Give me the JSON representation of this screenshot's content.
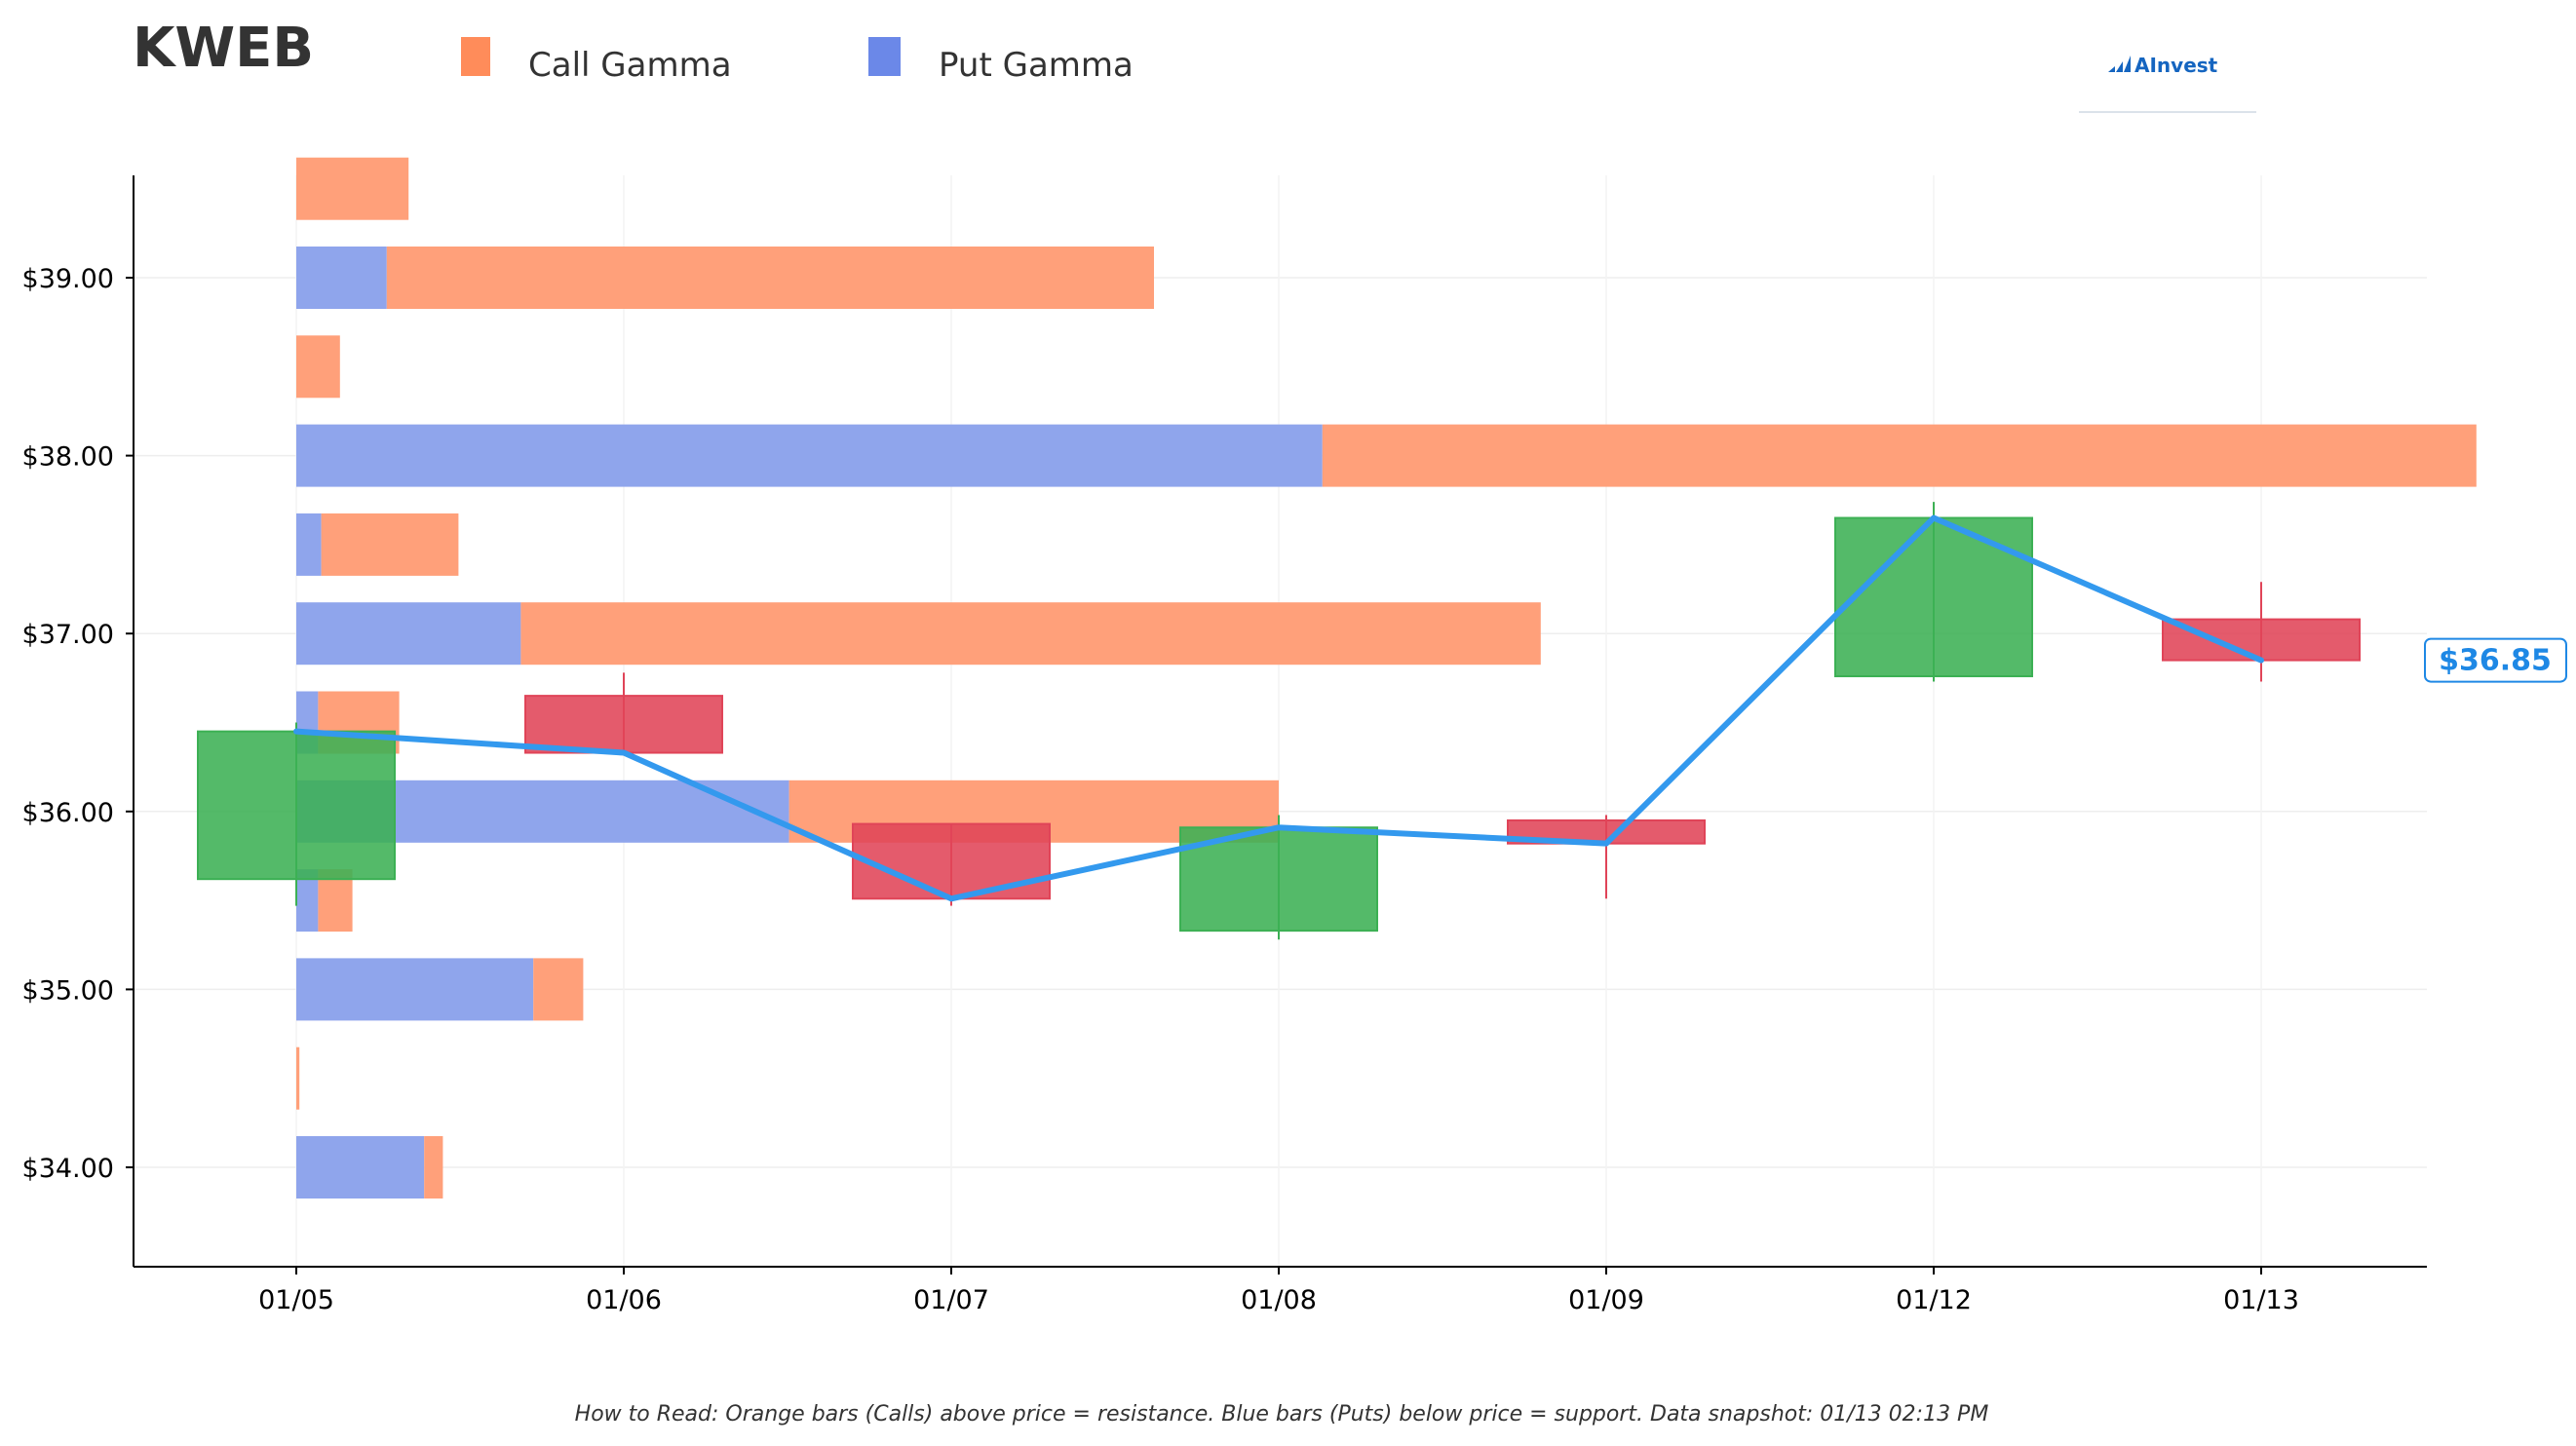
{
  "ticker": "KWEB",
  "legend": {
    "call_label": "Call Gamma",
    "put_label": "Put Gamma"
  },
  "logo": {
    "text": "AInvest",
    "icon": "bar-chart-logo-icon"
  },
  "footnote": "How to Read: Orange bars (Calls) above price = resistance. Blue bars (Puts) below price = support. Data snapshot: 01/13 02:13 PM",
  "colors": {
    "call": "#FFA07A",
    "call_legend": "#FF8C5A",
    "put": "#8FA5EC",
    "put_legend": "#6B88E8",
    "up": "#3CB054",
    "down": "#E04458",
    "line": "#3399EE",
    "price_tag": "#1E88E5",
    "text": "#333333"
  },
  "chart_data": {
    "type": "candlestick",
    "x_categories": [
      "01/05",
      "01/06",
      "01/07",
      "01/08",
      "01/09",
      "01/12",
      "01/13"
    ],
    "y_ticks": [
      "$34.00",
      "$35.00",
      "$36.00",
      "$37.00",
      "$38.00",
      "$39.00"
    ],
    "y_tick_values": [
      34,
      35,
      36,
      37,
      38,
      39
    ],
    "ylim": [
      33.45,
      39.6
    ],
    "grid": true,
    "legend_position": "top-left",
    "candles": [
      {
        "date": "01/05",
        "open": 35.62,
        "close": 36.45,
        "high": 36.5,
        "low": 35.47
      },
      {
        "date": "01/06",
        "open": 36.65,
        "close": 36.33,
        "high": 36.78,
        "low": 36.33
      },
      {
        "date": "01/07",
        "open": 35.93,
        "close": 35.51,
        "high": 35.93,
        "low": 35.47
      },
      {
        "date": "01/08",
        "open": 35.33,
        "close": 35.91,
        "high": 35.98,
        "low": 35.28
      },
      {
        "date": "01/09",
        "open": 35.95,
        "close": 35.82,
        "high": 35.98,
        "low": 35.51
      },
      {
        "date": "01/12",
        "open": 36.76,
        "close": 37.65,
        "high": 37.74,
        "low": 36.73
      },
      {
        "date": "01/13",
        "open": 37.08,
        "close": 36.85,
        "high": 37.29,
        "low": 36.73
      }
    ],
    "close_line": [
      36.45,
      36.33,
      35.51,
      35.91,
      35.82,
      37.65,
      36.85
    ],
    "last_price": "$36.85",
    "gamma_levels": [
      {
        "strike": 34.0,
        "put": 0.41,
        "call": 0.06
      },
      {
        "strike": 34.5,
        "put": 0.0,
        "call": 0.01
      },
      {
        "strike": 35.0,
        "put": 0.76,
        "call": 0.16
      },
      {
        "strike": 35.5,
        "put": 0.07,
        "call": 0.11
      },
      {
        "strike": 36.0,
        "put": 1.58,
        "call": 1.57
      },
      {
        "strike": 36.5,
        "put": 0.07,
        "call": 0.26
      },
      {
        "strike": 37.0,
        "put": 0.72,
        "call": 3.27
      },
      {
        "strike": 37.5,
        "put": 0.08,
        "call": 0.44
      },
      {
        "strike": 38.0,
        "put": 3.29,
        "call": 3.7
      },
      {
        "strike": 38.5,
        "put": 0.0,
        "call": 0.14
      },
      {
        "strike": 39.0,
        "put": 0.29,
        "call": 2.46
      },
      {
        "strike": 39.5,
        "put": 0.0,
        "call": 0.36
      }
    ]
  }
}
